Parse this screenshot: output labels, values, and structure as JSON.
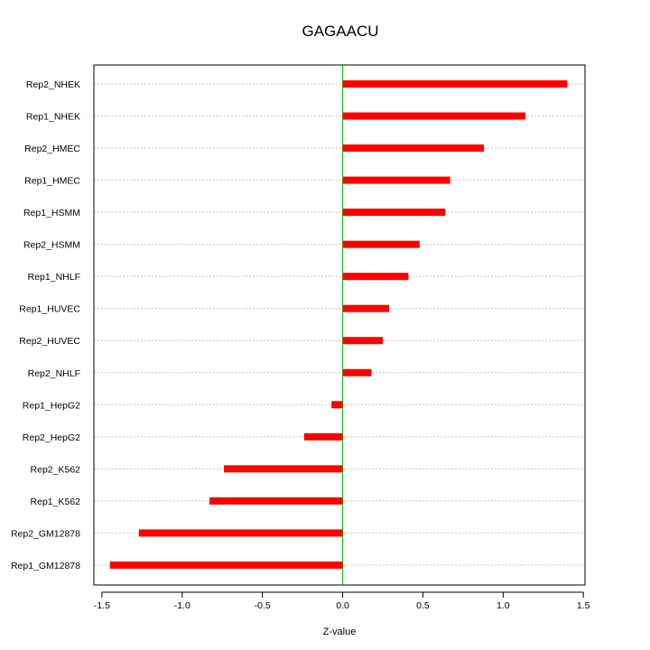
{
  "chart_data": {
    "type": "bar",
    "orientation": "horizontal",
    "title": "GAGAACU",
    "xlabel": "Z-value",
    "ylabel": "",
    "xlim": [
      -1.55,
      1.51
    ],
    "xticks": [
      -1.5,
      -1.0,
      -0.5,
      0.0,
      0.5,
      1.0,
      1.5
    ],
    "xtick_labels": [
      "-1.5",
      "-1.0",
      "-0.5",
      "0.0",
      "0.5",
      "1.0",
      "1.5"
    ],
    "categories": [
      "Rep2_NHEK",
      "Rep1_NHEK",
      "Rep2_HMEC",
      "Rep1_HMEC",
      "Rep1_HSMM",
      "Rep2_HSMM",
      "Rep1_NHLF",
      "Rep1_HUVEC",
      "Rep2_HUVEC",
      "Rep2_NHLF",
      "Rep1_HepG2",
      "Rep2_HepG2",
      "Rep2_K562",
      "Rep1_K562",
      "Rep2_GM12878",
      "Rep1_GM12878"
    ],
    "values": [
      1.4,
      1.14,
      0.88,
      0.67,
      0.64,
      0.48,
      0.41,
      0.29,
      0.25,
      0.18,
      -0.07,
      -0.24,
      -0.74,
      -0.83,
      -1.27,
      -1.45
    ],
    "bar_color": "#ff0000",
    "zero_line_color": "#00cc00",
    "grid": "horizontal dotted",
    "legend": "none"
  }
}
